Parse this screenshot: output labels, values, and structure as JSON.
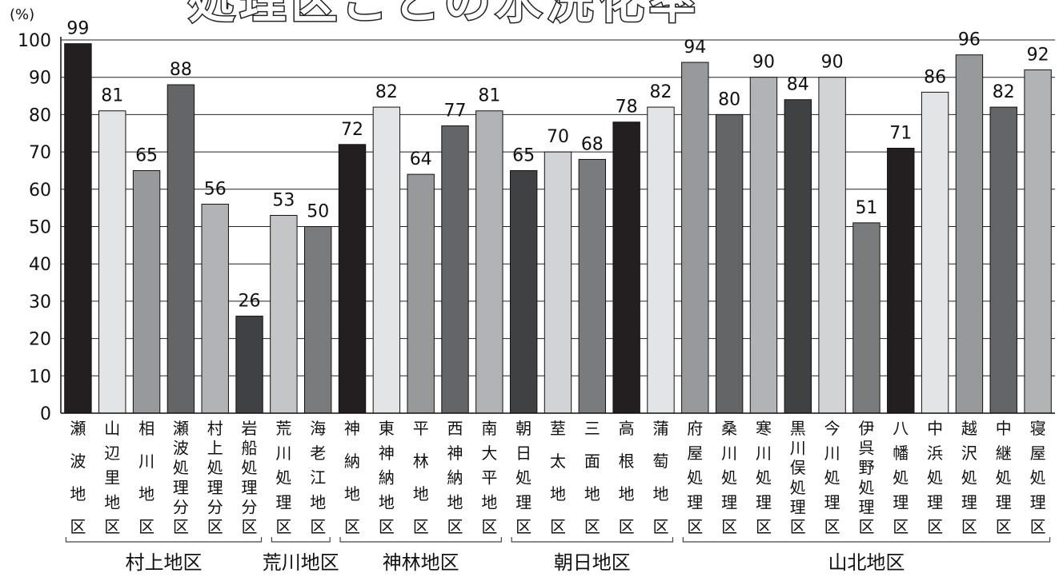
{
  "chart_data": {
    "type": "bar",
    "title": "処理区ごとの水洗化率",
    "unit_label": "(%)",
    "ylim": [
      0,
      100
    ],
    "yticks": [
      0,
      10,
      20,
      30,
      40,
      50,
      60,
      70,
      80,
      90,
      100
    ],
    "grid": "horizontal",
    "categories": [
      "瀬波地区",
      "山辺里地区",
      "相川地区",
      "瀬波処理分区",
      "村上処理分区",
      "岩船処理分区",
      "荒川処理区",
      "海老江地区",
      "神納地区",
      "東神納地区",
      "平林地区",
      "西神納地区",
      "南大平地区",
      "朝日処理区",
      "荎太地区",
      "三面地区",
      "高根地区",
      "蒲萄地区",
      "府屋処理区",
      "桑川処理区",
      "寒川処理区",
      "黒川俣処理区",
      "今川処理区",
      "伊呉野処理区",
      "八幡処理区",
      "中浜処理区",
      "越沢処理区",
      "中継処理区",
      "寝屋処理区"
    ],
    "values": [
      99,
      81,
      65,
      88,
      56,
      26,
      53,
      50,
      72,
      82,
      64,
      77,
      81,
      65,
      70,
      68,
      78,
      82,
      94,
      80,
      90,
      84,
      90,
      51,
      71,
      86,
      96,
      82,
      92
    ],
    "bar_colors": [
      "#231f20",
      "#e3e4e6",
      "#98999b",
      "#646567",
      "#b2b3b5",
      "#404143",
      "#c4c5c7",
      "#7a7b7d",
      "#231f20",
      "#e3e4e6",
      "#98999b",
      "#646567",
      "#b2b3b5",
      "#404143",
      "#d2d3d5",
      "#7a7b7d",
      "#231f20",
      "#e3e4e6",
      "#98999b",
      "#646567",
      "#b2b3b5",
      "#404143",
      "#d2d3d5",
      "#7a7b7d",
      "#231f20",
      "#e3e4e6",
      "#98999b",
      "#646567",
      "#b2b3b5"
    ],
    "groups": [
      {
        "label": "村上地区",
        "from": 0,
        "to": 5
      },
      {
        "label": "荒川地区",
        "from": 6,
        "to": 7
      },
      {
        "label": "神林地区",
        "from": 8,
        "to": 12
      },
      {
        "label": "朝日地区",
        "from": 13,
        "to": 17
      },
      {
        "label": "山北地区",
        "from": 18,
        "to": 28
      }
    ]
  }
}
